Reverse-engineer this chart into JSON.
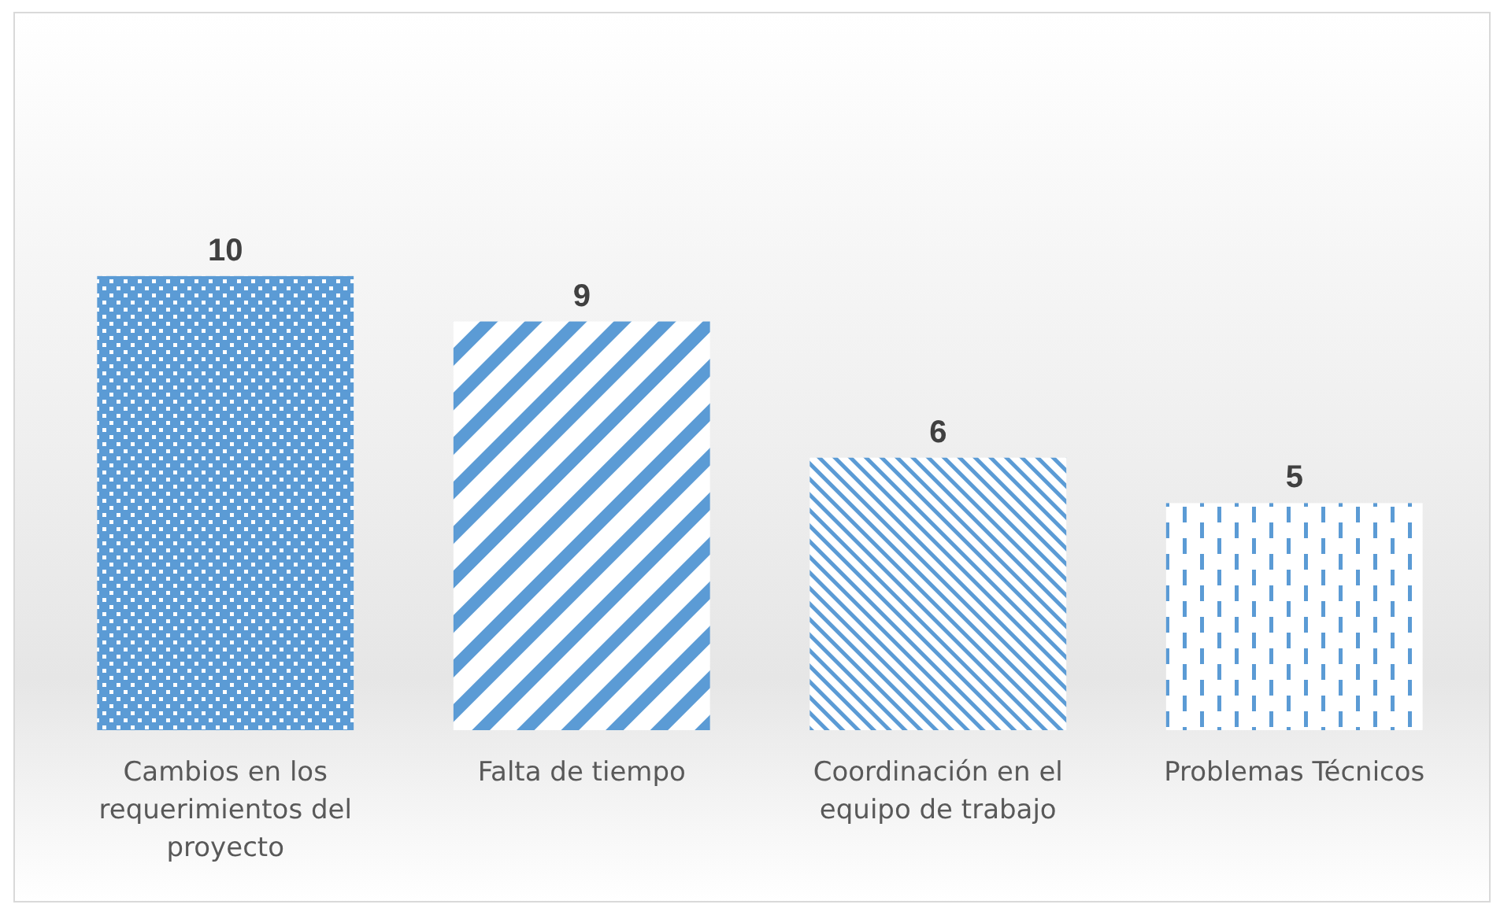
{
  "chart_data": {
    "type": "bar",
    "categories": [
      "Cambios en los requerimientos del proyecto",
      "Falta de tiempo",
      "Coordinación en el equipo de trabajo",
      "Problemas Técnicos"
    ],
    "values": [
      10,
      9,
      6,
      5
    ],
    "color": "#5b9bd5",
    "data_labels": true
  }
}
